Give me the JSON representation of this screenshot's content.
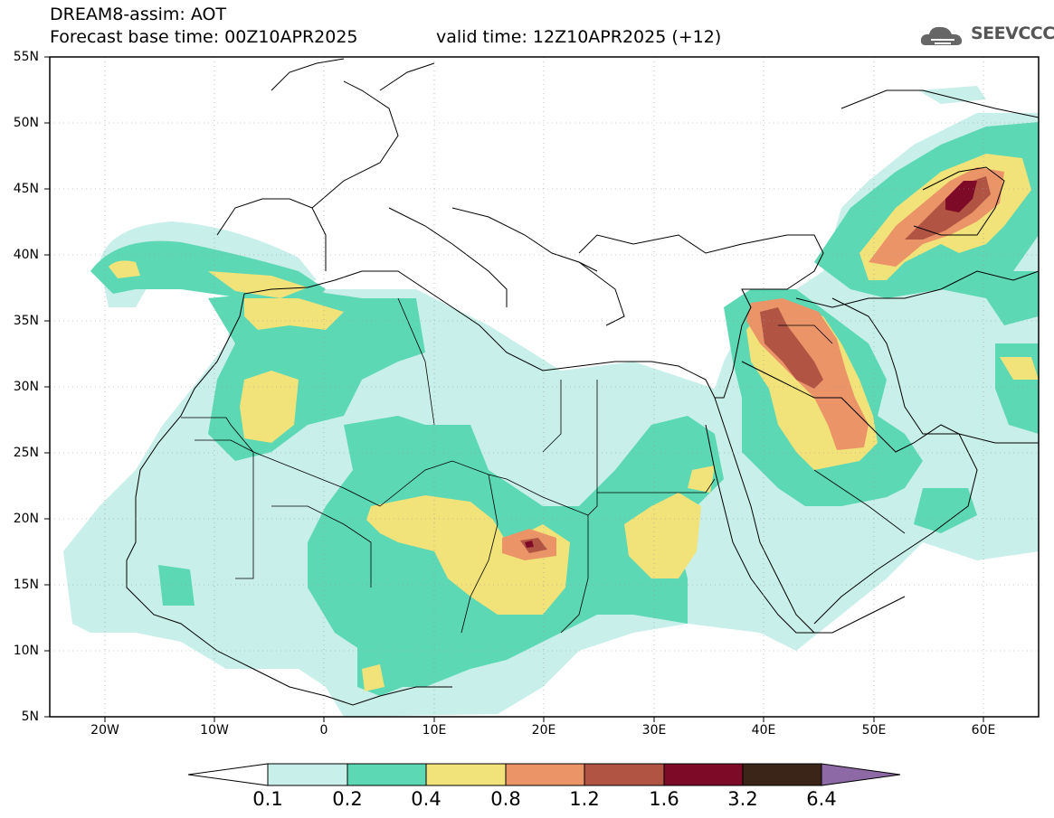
{
  "header": {
    "title_line1": "DREAM8-assim: AOT",
    "title_line2": "Forecast base time: 00Z10APR2025",
    "valid_time": "valid time: 12Z10APR2025 (+12)",
    "logo_text": "SEEVCCC"
  },
  "axes": {
    "lat_labels": [
      "55N",
      "50N",
      "45N",
      "40N",
      "35N",
      "30N",
      "25N",
      "20N",
      "15N",
      "10N",
      "5N"
    ],
    "lon_labels": [
      "20W",
      "10W",
      "0",
      "10E",
      "20E",
      "30E",
      "40E",
      "50E",
      "60E"
    ],
    "lon_range": [
      -25,
      65
    ],
    "lat_range": [
      5,
      55
    ]
  },
  "legend": {
    "values": [
      "0.1",
      "0.2",
      "0.4",
      "0.8",
      "1.2",
      "1.6",
      "3.2",
      "6.4"
    ],
    "colors": [
      "#c8efe9",
      "#5cd8b4",
      "#f2e27a",
      "#eb9468",
      "#b25443",
      "#7d0a26",
      "#3b2418",
      "#8d6aa6"
    ],
    "under_color": "#ffffff"
  },
  "icons": {
    "logo": "cloud-logo-icon"
  }
}
